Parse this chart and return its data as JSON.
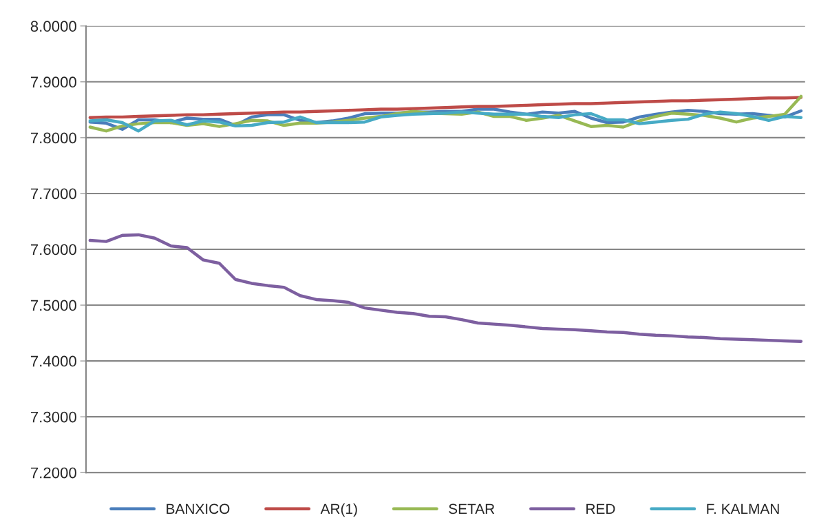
{
  "chart_data": {
    "type": "line",
    "categories": [
      null,
      null,
      null,
      null,
      null,
      null,
      null,
      null,
      null,
      null,
      null,
      null,
      null,
      null,
      null,
      null,
      null,
      null,
      null,
      null,
      null,
      null,
      null,
      null,
      null,
      null,
      null,
      null,
      null,
      null,
      null,
      null,
      null,
      null,
      null,
      null,
      null,
      null,
      null,
      null,
      null,
      null,
      null,
      null,
      null
    ],
    "series": [
      {
        "name": "BANXICO",
        "color": "#4a7ebb",
        "values": [
          7.828,
          7.826,
          7.815,
          7.832,
          7.832,
          7.827,
          7.835,
          7.833,
          7.833,
          7.822,
          7.837,
          7.841,
          7.841,
          7.831,
          7.827,
          7.83,
          7.835,
          7.843,
          7.844,
          7.844,
          7.846,
          7.846,
          7.847,
          7.847,
          7.851,
          7.851,
          7.846,
          7.842,
          7.846,
          7.844,
          7.847,
          7.835,
          7.827,
          7.828,
          7.837,
          7.842,
          7.846,
          7.849,
          7.847,
          7.843,
          7.842,
          7.843,
          7.84,
          7.837,
          7.848
        ]
      },
      {
        "name": "AR(1)",
        "color": "#be4b48",
        "values": [
          7.836,
          7.837,
          7.837,
          7.838,
          7.839,
          7.84,
          7.841,
          7.841,
          7.842,
          7.843,
          7.844,
          7.845,
          7.846,
          7.846,
          7.847,
          7.848,
          7.849,
          7.85,
          7.851,
          7.851,
          7.852,
          7.853,
          7.854,
          7.855,
          7.856,
          7.856,
          7.857,
          7.858,
          7.859,
          7.86,
          7.861,
          7.861,
          7.862,
          7.863,
          7.864,
          7.865,
          7.866,
          7.866,
          7.867,
          7.868,
          7.869,
          7.87,
          7.871,
          7.871,
          7.872
        ]
      },
      {
        "name": "SETAR",
        "color": "#98b954",
        "values": [
          7.819,
          7.812,
          7.821,
          7.825,
          7.827,
          7.827,
          7.822,
          7.825,
          7.82,
          7.825,
          7.831,
          7.83,
          7.822,
          7.826,
          7.826,
          7.828,
          7.831,
          7.835,
          7.838,
          7.843,
          7.847,
          7.844,
          7.843,
          7.842,
          7.846,
          7.838,
          7.838,
          7.831,
          7.835,
          7.84,
          7.83,
          7.82,
          7.822,
          7.819,
          7.83,
          7.838,
          7.844,
          7.842,
          7.84,
          7.835,
          7.828,
          7.835,
          7.838,
          7.842,
          7.874
        ]
      },
      {
        "name": "RED",
        "color": "#7d5fa0",
        "values": [
          7.616,
          7.614,
          7.625,
          7.626,
          7.62,
          7.606,
          7.603,
          7.581,
          7.575,
          7.546,
          7.539,
          7.535,
          7.532,
          7.517,
          7.51,
          7.508,
          7.505,
          7.495,
          7.491,
          7.487,
          7.485,
          7.48,
          7.479,
          7.474,
          7.468,
          7.466,
          7.464,
          7.461,
          7.458,
          7.457,
          7.456,
          7.454,
          7.452,
          7.451,
          7.448,
          7.446,
          7.445,
          7.443,
          7.442,
          7.44,
          7.439,
          7.438,
          7.437,
          7.436,
          7.435
        ]
      },
      {
        "name": "F. KALMAN",
        "color": "#46aac5",
        "values": [
          7.83,
          7.832,
          7.827,
          7.812,
          7.83,
          7.831,
          7.823,
          7.83,
          7.828,
          7.821,
          7.822,
          7.827,
          7.828,
          7.837,
          7.827,
          7.827,
          7.827,
          7.828,
          7.837,
          7.84,
          7.842,
          7.843,
          7.844,
          7.846,
          7.844,
          7.842,
          7.842,
          7.842,
          7.838,
          7.836,
          7.841,
          7.843,
          7.832,
          7.832,
          7.825,
          7.828,
          7.831,
          7.833,
          7.842,
          7.846,
          7.843,
          7.838,
          7.831,
          7.838,
          7.836
        ]
      }
    ],
    "ylim": [
      7.2,
      8.0
    ],
    "yticks": [
      {
        "value": 7.2,
        "label": "7.2000"
      },
      {
        "value": 7.3,
        "label": "7.3000"
      },
      {
        "value": 7.4,
        "label": "7.4000"
      },
      {
        "value": 7.5,
        "label": "7.5000"
      },
      {
        "value": 7.6,
        "label": "7.6000"
      },
      {
        "value": 7.7,
        "label": "7.7000"
      },
      {
        "value": 7.8,
        "label": "7.8000"
      },
      {
        "value": 7.9,
        "label": "7.9000"
      },
      {
        "value": 8.0,
        "label": "8.0000"
      }
    ],
    "grid": "y",
    "legend": "bottom",
    "marker": "none",
    "line_style": "solid"
  }
}
